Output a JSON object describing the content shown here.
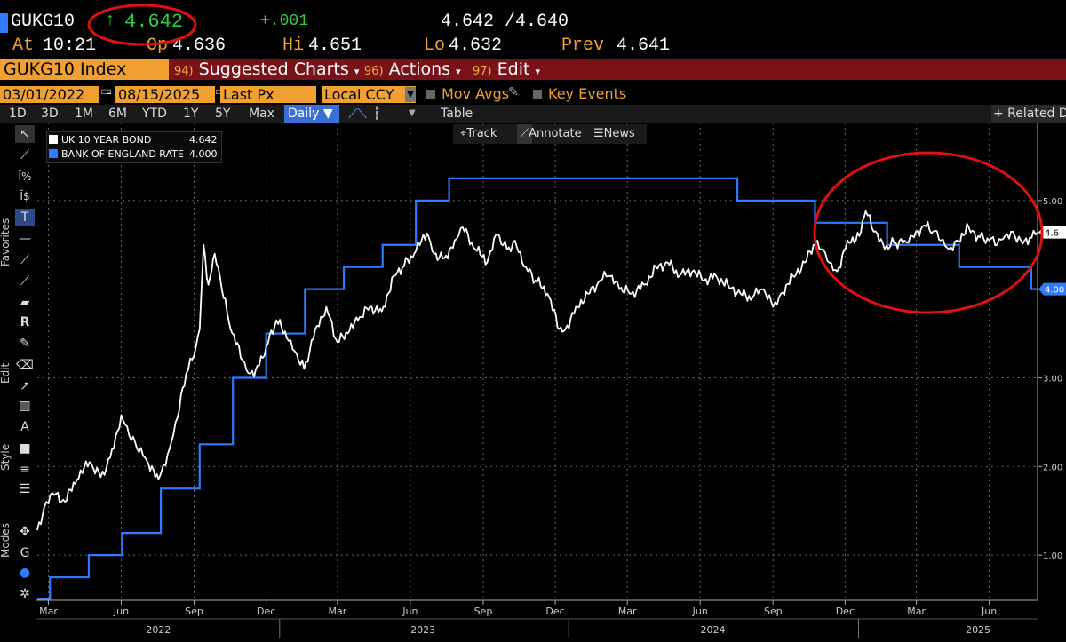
{
  "header": {
    "ticker": "GUKG10",
    "arrow": "↑",
    "last": "4.642",
    "change": "+.001",
    "bid_ask": "4.642 /4.640",
    "at_label": "At",
    "time": "10:21",
    "open_label": "Op",
    "open": "4.636",
    "hi_label": "Hi",
    "hi": "4.651",
    "lo_label": "Lo",
    "lo": "4.632",
    "prev_label": "Prev",
    "prev": "4.641"
  },
  "menu": {
    "security": "GUKG10 Index",
    "suggested_num": "94)",
    "suggested": "Suggested Charts",
    "actions_num": "96)",
    "actions": "Actions",
    "edit_num": "97)",
    "edit": "Edit"
  },
  "controls": {
    "start_date": "03/01/2022",
    "end_date": "08/15/2025",
    "field": "Last Px",
    "currency": "Local CCY",
    "mov_avgs": "Mov Avgs",
    "key_events": "Key Events"
  },
  "periods": [
    "1D",
    "3D",
    "1M",
    "6M",
    "YTD",
    "1Y",
    "5Y",
    "Max"
  ],
  "frequency": "Daily",
  "table_label": "Table",
  "related": "+ Related D",
  "overlay": {
    "track": "Track",
    "annotate": "Annotate",
    "news": "News"
  },
  "side_labels": {
    "favorites": "Favorites",
    "edit": "Edit",
    "style": "Style",
    "modes": "Modes"
  },
  "colors": {
    "yield": "#ffffff",
    "rate": "#2f7bff",
    "accent": "#f0a030",
    "annotation": "#e01010",
    "up": "#2ecc40"
  },
  "chart_data": {
    "type": "line",
    "xlim": [
      "2022-03-01",
      "2025-08-15"
    ],
    "ylim": [
      0.5,
      5.8
    ],
    "y_ticks": [
      "1.00",
      "2.00",
      "3.00",
      "4.00",
      "5.00"
    ],
    "x_tick_labels": [
      {
        "date": "2022-03-15",
        "label": "Mar"
      },
      {
        "date": "2022-06-15",
        "label": "Jun"
      },
      {
        "date": "2022-09-15",
        "label": "Sep"
      },
      {
        "date": "2022-12-15",
        "label": "Dec"
      },
      {
        "date": "2023-03-15",
        "label": "Mar"
      },
      {
        "date": "2023-06-15",
        "label": "Jun"
      },
      {
        "date": "2023-09-15",
        "label": "Sep"
      },
      {
        "date": "2023-12-15",
        "label": "Dec"
      },
      {
        "date": "2024-03-15",
        "label": "Mar"
      },
      {
        "date": "2024-06-15",
        "label": "Jun"
      },
      {
        "date": "2024-09-15",
        "label": "Sep"
      },
      {
        "date": "2024-12-15",
        "label": "Dec"
      },
      {
        "date": "2025-03-15",
        "label": "Mar"
      },
      {
        "date": "2025-06-15",
        "label": "Jun"
      }
    ],
    "year_labels": [
      {
        "date": "2022-08-01",
        "label": "2022"
      },
      {
        "date": "2023-07-01",
        "label": "2023"
      },
      {
        "date": "2024-07-01",
        "label": "2024"
      },
      {
        "date": "2025-06-01",
        "label": "2025"
      }
    ],
    "grid": true,
    "legend": "top-left",
    "series": [
      {
        "name": "UK 10 YEAR BOND",
        "last_label": "4.642",
        "axis_label": "4.6",
        "points": [
          [
            "2022-03-01",
            1.28
          ],
          [
            "2022-03-10",
            1.55
          ],
          [
            "2022-03-20",
            1.7
          ],
          [
            "2022-04-05",
            1.6
          ],
          [
            "2022-04-20",
            1.85
          ],
          [
            "2022-05-06",
            2.05
          ],
          [
            "2022-05-20",
            1.88
          ],
          [
            "2022-06-01",
            2.1
          ],
          [
            "2022-06-15",
            2.58
          ],
          [
            "2022-06-25",
            2.35
          ],
          [
            "2022-07-05",
            2.2
          ],
          [
            "2022-07-15",
            2.1
          ],
          [
            "2022-07-28",
            1.88
          ],
          [
            "2022-08-05",
            1.95
          ],
          [
            "2022-08-15",
            2.2
          ],
          [
            "2022-08-25",
            2.55
          ],
          [
            "2022-09-05",
            3.05
          ],
          [
            "2022-09-15",
            3.25
          ],
          [
            "2022-09-22",
            3.55
          ],
          [
            "2022-09-27",
            4.5
          ],
          [
            "2022-10-03",
            4.05
          ],
          [
            "2022-10-11",
            4.4
          ],
          [
            "2022-10-20",
            4.0
          ],
          [
            "2022-10-31",
            3.55
          ],
          [
            "2022-11-15",
            3.2
          ],
          [
            "2022-11-25",
            3.05
          ],
          [
            "2022-12-02",
            3.1
          ],
          [
            "2022-12-15",
            3.35
          ],
          [
            "2022-12-28",
            3.65
          ],
          [
            "2023-01-10",
            3.45
          ],
          [
            "2023-01-20",
            3.3
          ],
          [
            "2023-02-01",
            3.1
          ],
          [
            "2023-02-15",
            3.55
          ],
          [
            "2023-03-01",
            3.8
          ],
          [
            "2023-03-15",
            3.4
          ],
          [
            "2023-03-28",
            3.5
          ],
          [
            "2023-04-10",
            3.65
          ],
          [
            "2023-04-25",
            3.8
          ],
          [
            "2023-05-10",
            3.75
          ],
          [
            "2023-05-25",
            4.15
          ],
          [
            "2023-06-05",
            4.25
          ],
          [
            "2023-06-20",
            4.4
          ],
          [
            "2023-07-06",
            4.63
          ],
          [
            "2023-07-15",
            4.4
          ],
          [
            "2023-07-28",
            4.35
          ],
          [
            "2023-08-10",
            4.55
          ],
          [
            "2023-08-20",
            4.7
          ],
          [
            "2023-09-05",
            4.45
          ],
          [
            "2023-09-20",
            4.3
          ],
          [
            "2023-10-03",
            4.62
          ],
          [
            "2023-10-15",
            4.45
          ],
          [
            "2023-10-25",
            4.55
          ],
          [
            "2023-11-08",
            4.25
          ],
          [
            "2023-11-20",
            4.1
          ],
          [
            "2023-12-05",
            3.95
          ],
          [
            "2023-12-20",
            3.55
          ],
          [
            "2023-12-28",
            3.55
          ],
          [
            "2024-01-10",
            3.8
          ],
          [
            "2024-01-25",
            3.95
          ],
          [
            "2024-02-10",
            4.1
          ],
          [
            "2024-02-20",
            4.15
          ],
          [
            "2024-03-05",
            4.0
          ],
          [
            "2024-03-20",
            3.95
          ],
          [
            "2024-04-05",
            4.05
          ],
          [
            "2024-04-20",
            4.25
          ],
          [
            "2024-05-05",
            4.3
          ],
          [
            "2024-05-20",
            4.15
          ],
          [
            "2024-06-05",
            4.2
          ],
          [
            "2024-06-20",
            4.1
          ],
          [
            "2024-07-05",
            4.15
          ],
          [
            "2024-07-20",
            4.05
          ],
          [
            "2024-08-05",
            3.95
          ],
          [
            "2024-08-20",
            3.9
          ],
          [
            "2024-09-01",
            4.0
          ],
          [
            "2024-09-15",
            3.8
          ],
          [
            "2024-09-25",
            3.95
          ],
          [
            "2024-10-10",
            4.15
          ],
          [
            "2024-10-25",
            4.3
          ],
          [
            "2024-11-05",
            4.5
          ],
          [
            "2024-11-15",
            4.45
          ],
          [
            "2024-11-25",
            4.3
          ],
          [
            "2024-12-05",
            4.2
          ],
          [
            "2024-12-18",
            4.55
          ],
          [
            "2025-01-02",
            4.6
          ],
          [
            "2025-01-10",
            4.88
          ],
          [
            "2025-01-20",
            4.65
          ],
          [
            "2025-02-03",
            4.45
          ],
          [
            "2025-02-15",
            4.52
          ],
          [
            "2025-02-28",
            4.55
          ],
          [
            "2025-03-10",
            4.6
          ],
          [
            "2025-03-25",
            4.72
          ],
          [
            "2025-04-05",
            4.65
          ],
          [
            "2025-04-15",
            4.55
          ],
          [
            "2025-04-25",
            4.45
          ],
          [
            "2025-05-05",
            4.55
          ],
          [
            "2025-05-20",
            4.7
          ],
          [
            "2025-06-01",
            4.6
          ],
          [
            "2025-06-15",
            4.55
          ],
          [
            "2025-06-25",
            4.5
          ],
          [
            "2025-07-05",
            4.6
          ],
          [
            "2025-07-15",
            4.65
          ],
          [
            "2025-07-25",
            4.55
          ],
          [
            "2025-08-05",
            4.58
          ],
          [
            "2025-08-15",
            4.642
          ]
        ]
      },
      {
        "name": "BANK OF ENGLAND RATE",
        "last_label": "4.000",
        "axis_label": "4.00",
        "step": true,
        "points": [
          [
            "2022-03-01",
            0.5
          ],
          [
            "2022-03-17",
            0.75
          ],
          [
            "2022-05-05",
            1.0
          ],
          [
            "2022-06-16",
            1.25
          ],
          [
            "2022-08-04",
            1.75
          ],
          [
            "2022-09-22",
            2.25
          ],
          [
            "2022-11-03",
            3.0
          ],
          [
            "2022-12-15",
            3.5
          ],
          [
            "2023-02-02",
            4.0
          ],
          [
            "2023-03-23",
            4.25
          ],
          [
            "2023-05-11",
            4.5
          ],
          [
            "2023-06-22",
            5.0
          ],
          [
            "2023-08-03",
            5.25
          ],
          [
            "2024-08-01",
            5.0
          ],
          [
            "2024-11-07",
            4.75
          ],
          [
            "2025-02-06",
            4.5
          ],
          [
            "2025-05-08",
            4.25
          ],
          [
            "2025-08-07",
            4.0
          ],
          [
            "2025-08-15",
            4.0
          ]
        ]
      }
    ]
  }
}
